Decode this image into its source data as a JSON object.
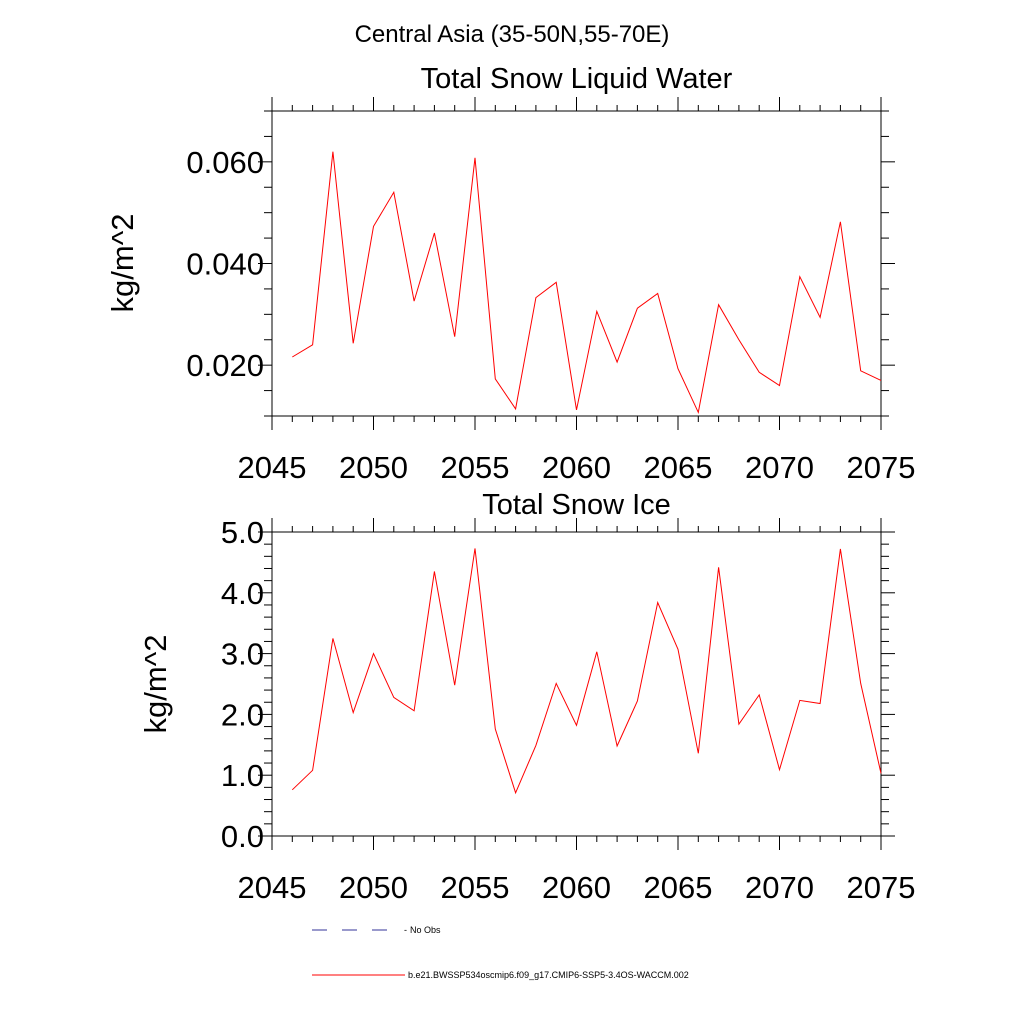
{
  "page": {
    "title": "Central Asia (35-50N,55-70E)"
  },
  "colors": {
    "series": "#ff0000",
    "axis": "#000000",
    "noobs": "#333399"
  },
  "legend": {
    "noobs_label": "No Obs",
    "series_label": "b.e21.BWSSP534oscmip6.f09_g17.CMIP6-SSP5-3.4OS-WACCM.002"
  },
  "chart_data": [
    {
      "type": "line",
      "title": "Total Snow Liquid Water",
      "xlabel": "",
      "ylabel": "kg/m^2",
      "xlim": [
        2045,
        2075
      ],
      "ylim": [
        0.01,
        0.07
      ],
      "xticks": [
        2045,
        2050,
        2055,
        2060,
        2065,
        2070,
        2075
      ],
      "xtick_labels": [
        "2045",
        "2050",
        "2055",
        "2060",
        "2065",
        "2070",
        "2075"
      ],
      "yticks": [
        0.02,
        0.04,
        0.06
      ],
      "ytick_labels": [
        "0.020",
        "0.040",
        "0.060"
      ],
      "x_minor_step": 1,
      "y_minor_step": 0.005,
      "series": [
        {
          "name": "b.e21.BWSSP534oscmip6.f09_g17.CMIP6-SSP5-3.4OS-WACCM.002",
          "x": [
            2046,
            2047,
            2048,
            2049,
            2050,
            2051,
            2052,
            2053,
            2054,
            2055,
            2056,
            2057,
            2058,
            2059,
            2060,
            2061,
            2062,
            2063,
            2064,
            2065,
            2066,
            2067,
            2068,
            2069,
            2070,
            2071,
            2072,
            2073,
            2074,
            2075
          ],
          "values": [
            0.0216,
            0.024,
            0.062,
            0.0243,
            0.0473,
            0.054,
            0.0326,
            0.046,
            0.0256,
            0.0608,
            0.0173,
            0.0114,
            0.0333,
            0.0363,
            0.0112,
            0.0306,
            0.0206,
            0.0312,
            0.0341,
            0.0193,
            0.0107,
            0.0319,
            0.025,
            0.0186,
            0.016,
            0.0374,
            0.0294,
            0.0482,
            0.0189,
            0.017
          ]
        }
      ]
    },
    {
      "type": "line",
      "title": "Total Snow Ice",
      "xlabel": "",
      "ylabel": "kg/m^2",
      "xlim": [
        2045,
        2075
      ],
      "ylim": [
        0.0,
        5.0
      ],
      "xticks": [
        2045,
        2050,
        2055,
        2060,
        2065,
        2070,
        2075
      ],
      "xtick_labels": [
        "2045",
        "2050",
        "2055",
        "2060",
        "2065",
        "2070",
        "2075"
      ],
      "yticks": [
        0.0,
        1.0,
        2.0,
        3.0,
        4.0,
        5.0
      ],
      "ytick_labels": [
        "0.0",
        "1.0",
        "2.0",
        "3.0",
        "4.0",
        "5.0"
      ],
      "x_minor_step": 1,
      "y_minor_step": 0.2,
      "series": [
        {
          "name": "b.e21.BWSSP534oscmip6.f09_g17.CMIP6-SSP5-3.4OS-WACCM.002",
          "x": [
            2046,
            2047,
            2048,
            2049,
            2050,
            2051,
            2052,
            2053,
            2054,
            2055,
            2056,
            2057,
            2058,
            2059,
            2060,
            2061,
            2062,
            2063,
            2064,
            2065,
            2066,
            2067,
            2068,
            2069,
            2070,
            2071,
            2072,
            2073,
            2074,
            2075
          ],
          "values": [
            0.76,
            1.08,
            3.25,
            2.03,
            3.0,
            2.28,
            2.06,
            4.35,
            2.48,
            4.73,
            1.76,
            0.71,
            1.49,
            2.51,
            1.82,
            3.03,
            1.48,
            2.22,
            3.84,
            3.07,
            1.36,
            4.42,
            1.84,
            2.32,
            1.09,
            2.23,
            2.18,
            4.72,
            2.51,
            1.03
          ]
        }
      ]
    }
  ]
}
